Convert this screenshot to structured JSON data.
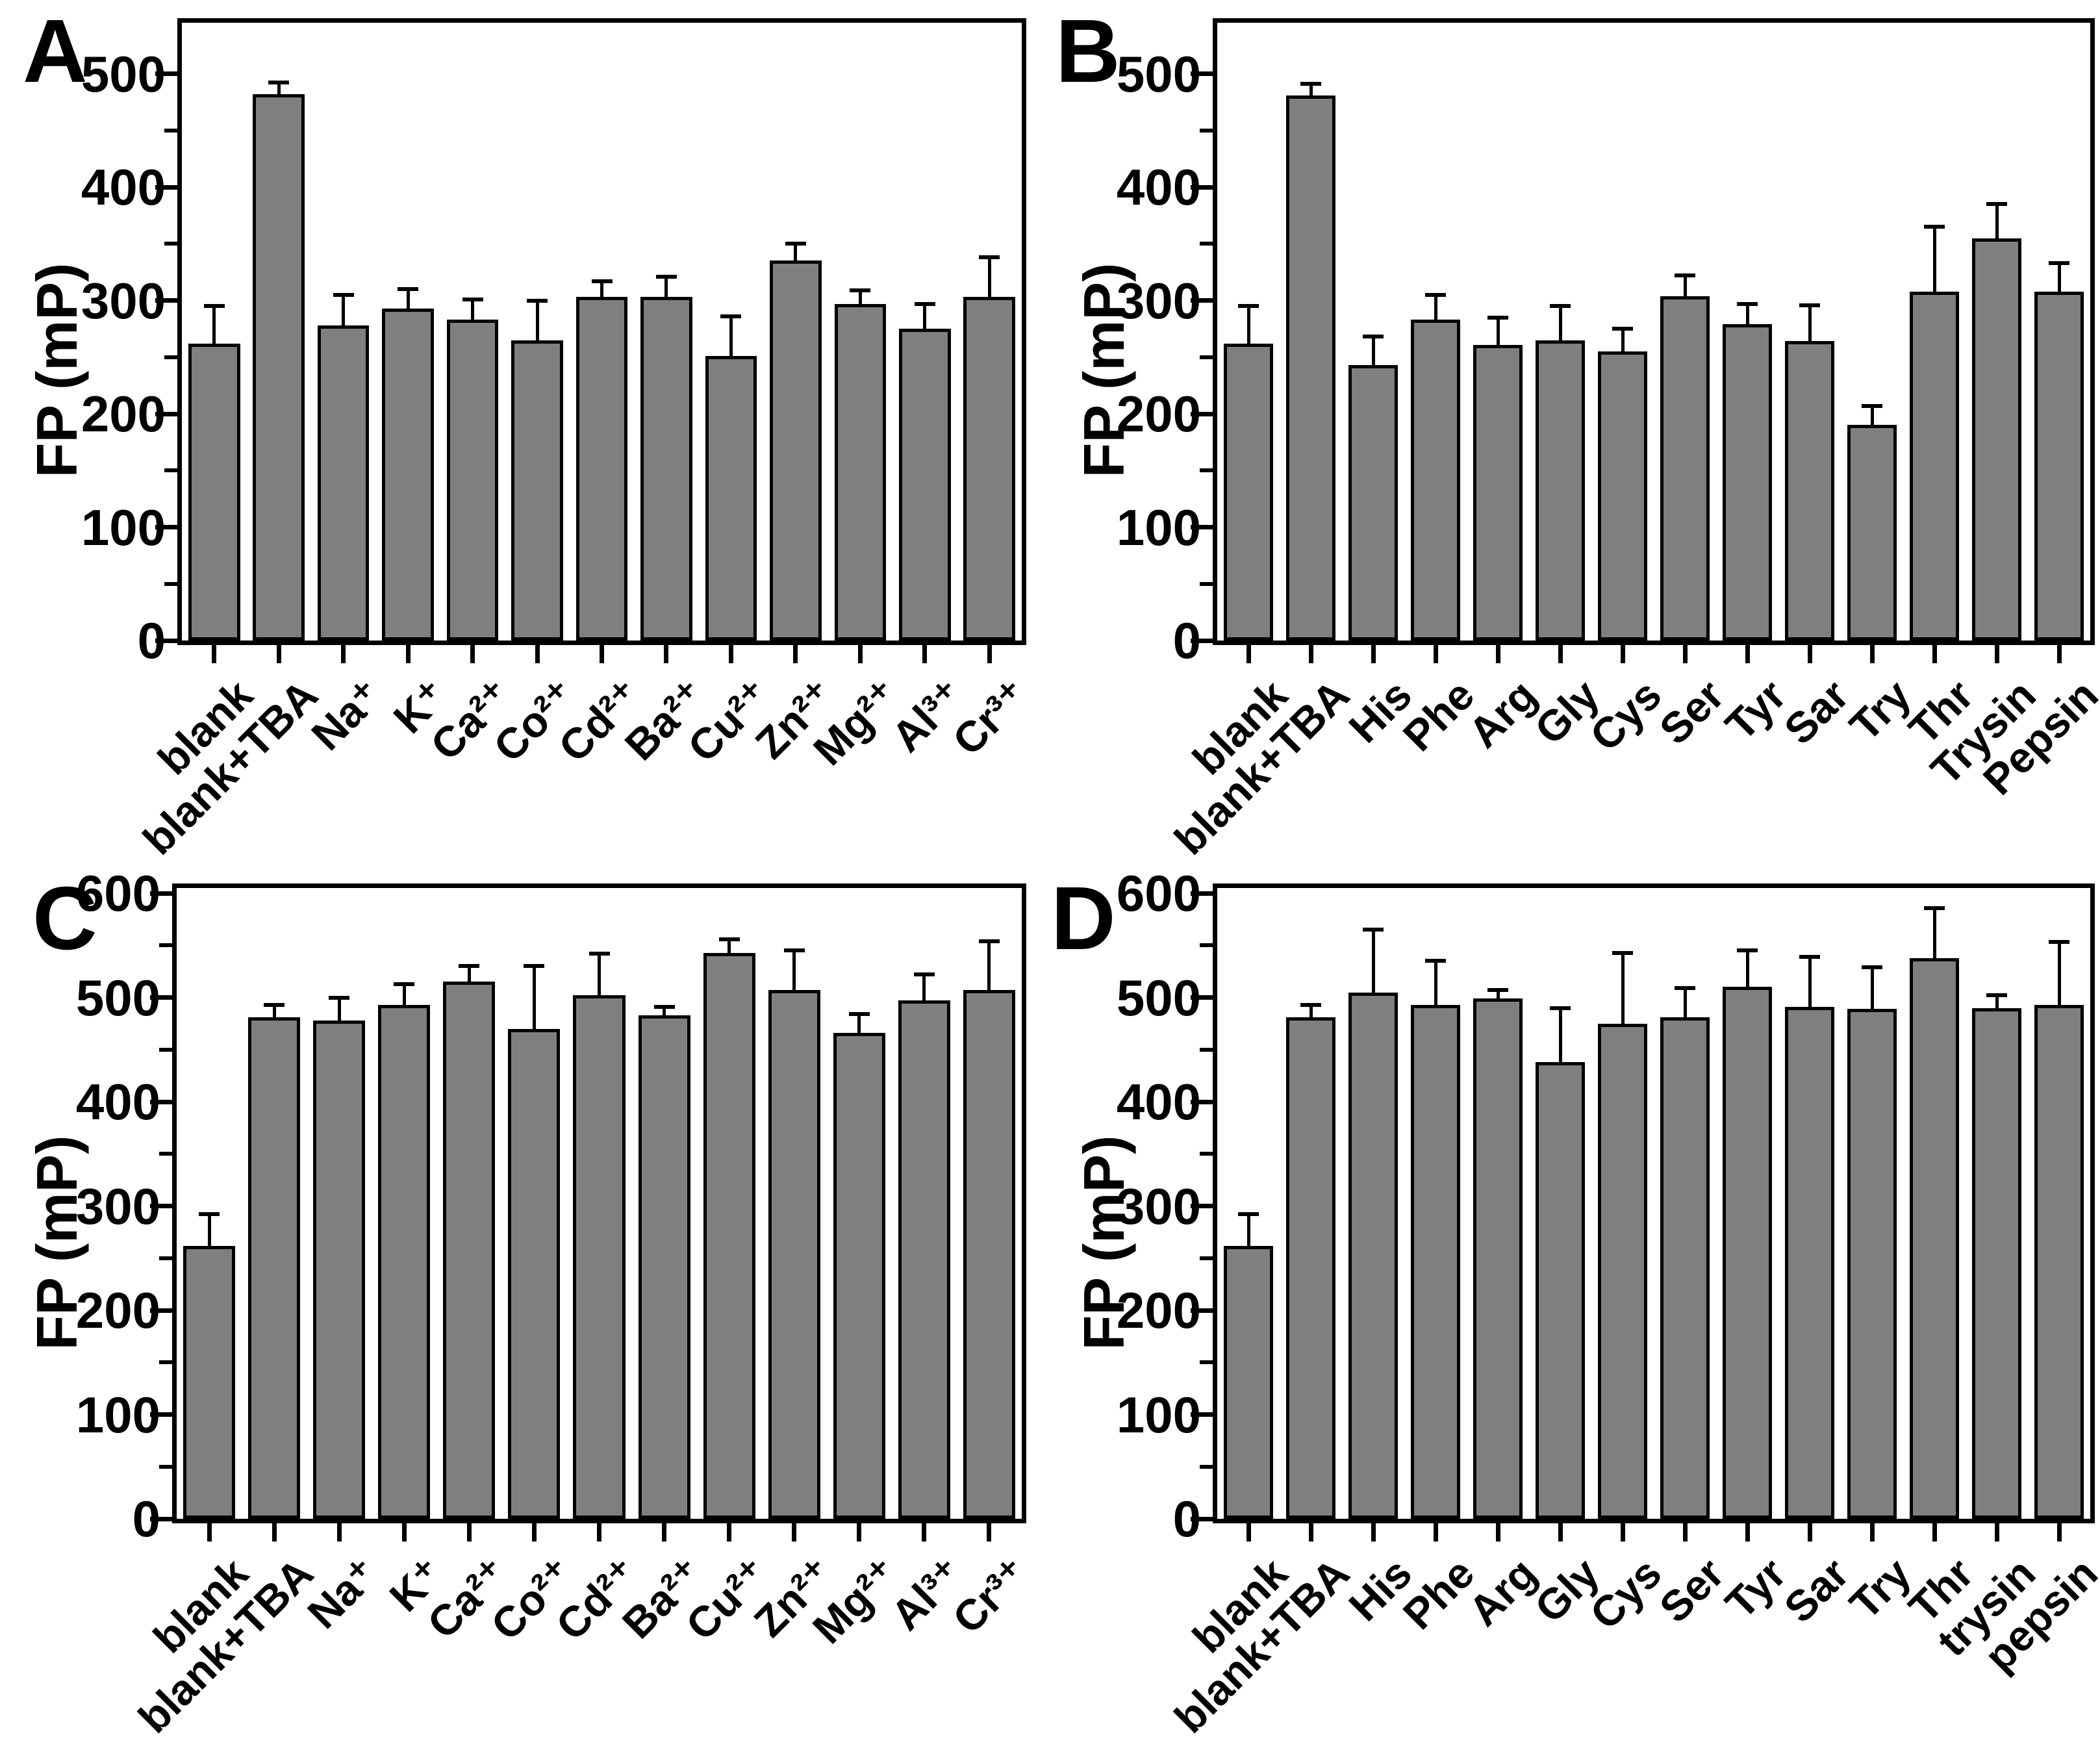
{
  "figure": {
    "background": "#ffffff",
    "bar_fill_color": "#7f7f7f",
    "bar_edge_color": "#000000",
    "error_bar_color": "#000000"
  },
  "chart_data": [
    {
      "panel_label": "A",
      "type": "bar",
      "title": "",
      "xlabel": "",
      "ylabel": "FP (mP)",
      "ylim": [
        0,
        545
      ],
      "yticks": [
        0,
        100,
        200,
        300,
        400,
        500
      ],
      "grid": false,
      "legend": "none",
      "categories": [
        "blank",
        "blank+TBA",
        "Na⁺",
        "K⁺",
        "Ca²⁺",
        "Co²⁺",
        "Cd²⁺",
        "Ba²⁺",
        "Cu²⁺",
        "Zn²⁺",
        "Mg²⁺",
        "Al³⁺",
        "Cr³⁺"
      ],
      "values": [
        262,
        482,
        278,
        293,
        283,
        265,
        303,
        303,
        251,
        335,
        297,
        275,
        303
      ],
      "errors": [
        33,
        10,
        27,
        17,
        18,
        35,
        14,
        18,
        35,
        15,
        12,
        22,
        35
      ]
    },
    {
      "panel_label": "B",
      "type": "bar",
      "title": "",
      "xlabel": "",
      "ylabel": "FP (mP)",
      "ylim": [
        0,
        545
      ],
      "yticks": [
        0,
        100,
        200,
        300,
        400,
        500
      ],
      "grid": false,
      "legend": "none",
      "categories": [
        "blank",
        "blank+TBA",
        "His",
        "Phe",
        "Arg",
        "Gly",
        "Cys",
        "Ser",
        "Tyr",
        "Sar",
        "Try",
        "Thr",
        "Trysin",
        "Pepsin"
      ],
      "values": [
        262,
        481,
        243,
        283,
        261,
        265,
        255,
        304,
        279,
        264,
        190,
        308,
        355,
        308
      ],
      "errors": [
        33,
        10,
        25,
        22,
        24,
        30,
        20,
        18,
        18,
        32,
        17,
        57,
        30,
        25
      ]
    },
    {
      "panel_label": "C",
      "type": "bar",
      "title": "",
      "xlabel": "",
      "ylabel": "FP (mP)",
      "ylim": [
        0,
        605
      ],
      "yticks": [
        0,
        100,
        200,
        300,
        400,
        500,
        600
      ],
      "grid": false,
      "legend": "none",
      "categories": [
        "blank",
        "blank+TBA",
        "Na⁺",
        "K⁺",
        "Ca²⁺",
        "Co²⁺",
        "Cd²⁺",
        "Ba²⁺",
        "Cu²⁺",
        "Zn²⁺",
        "Mg²⁺",
        "Al³⁺",
        "Cr³⁺"
      ],
      "values": [
        262,
        481,
        478,
        493,
        515,
        470,
        502,
        483,
        543,
        507,
        466,
        497,
        507
      ],
      "errors": [
        30,
        12,
        22,
        20,
        15,
        60,
        40,
        8,
        13,
        38,
        18,
        25,
        47
      ]
    },
    {
      "panel_label": "D",
      "type": "bar",
      "title": "",
      "xlabel": "",
      "ylabel": "FP (mP)",
      "ylim": [
        0,
        605
      ],
      "yticks": [
        0,
        100,
        200,
        300,
        400,
        500,
        600
      ],
      "grid": false,
      "legend": "none",
      "categories": [
        "blank",
        "blank+TBA",
        "His",
        "Phe",
        "Arg",
        "Gly",
        "Cys",
        "Ser",
        "Tyr",
        "Sar",
        "Try",
        "Thr",
        "trysin",
        "pepsin"
      ],
      "values": [
        262,
        481,
        505,
        493,
        499,
        438,
        475,
        481,
        510,
        491,
        489,
        538,
        490,
        493
      ],
      "errors": [
        30,
        12,
        60,
        42,
        8,
        52,
        68,
        28,
        35,
        48,
        40,
        48,
        12,
        60
      ]
    }
  ]
}
